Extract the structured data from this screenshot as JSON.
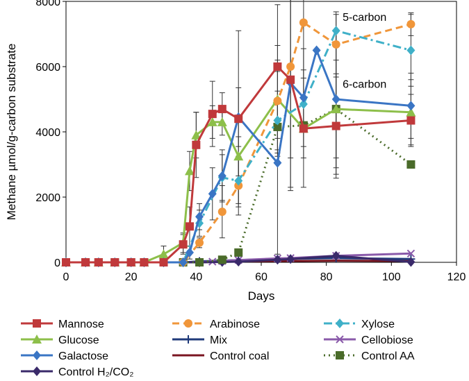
{
  "chart_data": {
    "type": "line",
    "title": "",
    "xlabel": "Days",
    "ylabel": "Methane µmol/g-carbon substrate",
    "xlim": [
      0,
      120
    ],
    "ylim": [
      0,
      8000
    ],
    "xticks": [
      "0",
      "20",
      "40",
      "60",
      "80",
      "100",
      "120"
    ],
    "yticks": [
      "0",
      "2000",
      "4000",
      "6000",
      "8000"
    ],
    "annotations": [
      {
        "text": "5-carbon",
        "x": 85,
        "y": 7400
      },
      {
        "text": "6-carbon",
        "x": 85,
        "y": 5350
      }
    ],
    "series": [
      {
        "name": "Mannose",
        "color": "#c0393b",
        "marker": "square",
        "dash": "solid",
        "x": [
          0,
          6,
          10,
          15,
          20,
          24,
          30,
          36,
          38,
          40,
          45,
          48,
          53,
          65,
          69,
          73,
          83,
          106
        ],
        "y": [
          0,
          0,
          0,
          0,
          0,
          0,
          0,
          550,
          1100,
          3600,
          4550,
          4700,
          4400,
          6000,
          5600,
          4100,
          4180,
          4350
        ],
        "err": [
          0,
          0,
          0,
          0,
          0,
          0,
          0,
          300,
          600,
          1000,
          1000,
          500,
          2700,
          1900,
          3300,
          1800,
          1600,
          800
        ]
      },
      {
        "name": "Arabinose",
        "color": "#f0963a",
        "marker": "circle",
        "dash": "dashed",
        "x": [
          0,
          6,
          10,
          15,
          20,
          24,
          30,
          36,
          41,
          48,
          53,
          65,
          69,
          73,
          83,
          106
        ],
        "y": [
          0,
          0,
          0,
          0,
          0,
          0,
          0,
          0,
          600,
          1550,
          2350,
          4950,
          6000,
          7350,
          6680,
          7300
        ],
        "err": [
          0,
          0,
          0,
          0,
          0,
          0,
          0,
          0,
          150,
          800,
          900,
          1700,
          2800,
          1700,
          1000,
          350
        ]
      },
      {
        "name": "Xylose",
        "color": "#3fb0c8",
        "marker": "diamond",
        "dash": "dashdot",
        "x": [
          0,
          6,
          10,
          15,
          20,
          24,
          30,
          36,
          41,
          48,
          53,
          65,
          73,
          83,
          106
        ],
        "y": [
          0,
          0,
          0,
          0,
          0,
          0,
          0,
          0,
          1200,
          2600,
          2500,
          4350,
          4850,
          7100,
          6500
        ],
        "err": [
          0,
          0,
          0,
          0,
          0,
          0,
          0,
          0,
          400,
          700,
          700,
          900,
          800,
          500,
          1100
        ]
      },
      {
        "name": "Glucose",
        "color": "#8dbf4a",
        "marker": "triangle",
        "dash": "solid",
        "x": [
          0,
          6,
          10,
          15,
          20,
          24,
          30,
          36,
          38,
          40,
          45,
          48,
          53,
          65,
          73,
          83,
          106
        ],
        "y": [
          0,
          0,
          0,
          0,
          0,
          0,
          250,
          600,
          2800,
          3900,
          4300,
          4300,
          3250,
          5000,
          4100,
          4700,
          4600
        ],
        "err": [
          0,
          0,
          0,
          0,
          0,
          0,
          250,
          300,
          600,
          700,
          500,
          400,
          600,
          1200,
          900,
          1500,
          1000
        ]
      },
      {
        "name": "Mix",
        "color": "#1f3a7a",
        "marker": "plus",
        "dash": "solid",
        "x": [
          0,
          6,
          10,
          15,
          20,
          24,
          30,
          36,
          41,
          48,
          53,
          65,
          69,
          83,
          106
        ],
        "y": [
          0,
          0,
          0,
          0,
          0,
          0,
          0,
          0,
          30,
          50,
          70,
          100,
          110,
          130,
          100
        ],
        "err": [
          0,
          0,
          0,
          0,
          0,
          0,
          0,
          0,
          0,
          0,
          0,
          0,
          0,
          0,
          0
        ]
      },
      {
        "name": "Cellobiose",
        "color": "#8a5aaa",
        "marker": "x",
        "dash": "solid",
        "x": [
          0,
          6,
          10,
          15,
          20,
          24,
          30,
          36,
          41,
          45,
          48,
          53,
          65,
          69,
          83,
          106
        ],
        "y": [
          0,
          0,
          0,
          0,
          0,
          0,
          0,
          0,
          10,
          20,
          40,
          70,
          120,
          130,
          200,
          270
        ],
        "err": [
          0,
          0,
          0,
          0,
          0,
          0,
          0,
          0,
          0,
          0,
          0,
          0,
          0,
          0,
          0,
          0
        ]
      },
      {
        "name": "Galactose",
        "color": "#3a75c4",
        "marker": "diamond",
        "dash": "solid",
        "x": [
          0,
          6,
          10,
          15,
          20,
          24,
          30,
          36,
          38,
          41,
          45,
          48,
          53,
          65,
          69,
          73,
          77,
          83,
          106
        ],
        "y": [
          0,
          0,
          0,
          0,
          0,
          0,
          0,
          0,
          300,
          1400,
          2100,
          2650,
          4450,
          3050,
          5500,
          5050,
          6500,
          5000,
          4800
        ],
        "err": [
          0,
          0,
          0,
          0,
          0,
          0,
          0,
          0,
          200,
          400,
          800,
          800,
          900,
          2800,
          3300,
          1500,
          0,
          2100,
          1000
        ]
      },
      {
        "name": "Control coal",
        "color": "#7a1520",
        "marker": "none",
        "dash": "solid",
        "x": [
          0,
          6,
          10,
          15,
          20,
          24,
          30,
          36,
          41,
          48,
          53,
          65,
          69,
          83,
          106
        ],
        "y": [
          0,
          0,
          0,
          0,
          0,
          0,
          0,
          0,
          0,
          20,
          30,
          40,
          40,
          50,
          40
        ],
        "err": [
          0,
          0,
          0,
          0,
          0,
          0,
          0,
          0,
          0,
          0,
          0,
          0,
          0,
          0,
          0
        ]
      },
      {
        "name": "Control H2/CO2",
        "color": "#3a2a6a",
        "marker": "diamond",
        "dash": "solid",
        "x": [
          0,
          6,
          10,
          15,
          20,
          24,
          30,
          36,
          41,
          48,
          53,
          65,
          69,
          83,
          106
        ],
        "y": [
          0,
          0,
          0,
          0,
          0,
          0,
          0,
          0,
          0,
          10,
          20,
          80,
          100,
          200,
          10
        ],
        "err": [
          0,
          0,
          0,
          0,
          0,
          0,
          0,
          0,
          0,
          0,
          0,
          0,
          0,
          0,
          0
        ]
      },
      {
        "name": "Control AA",
        "color": "#4a6b2a",
        "marker": "square",
        "dash": "dotted",
        "x": [
          0,
          6,
          10,
          15,
          20,
          24,
          30,
          36,
          41,
          48,
          53,
          65,
          73,
          83,
          106
        ],
        "y": [
          0,
          0,
          0,
          0,
          0,
          0,
          0,
          0,
          0,
          80,
          300,
          4150,
          4200,
          4700,
          3000
        ],
        "err": [
          0,
          0,
          0,
          0,
          0,
          0,
          0,
          0,
          0,
          0,
          0,
          800,
          0,
          2000,
          0
        ]
      }
    ]
  },
  "legend": {
    "rows": [
      [
        {
          "label": "Mannose",
          "series": 0
        },
        {
          "label": "Arabinose",
          "series": 1
        },
        {
          "label": "Xylose",
          "series": 2
        }
      ],
      [
        {
          "label": "Glucose",
          "series": 3
        },
        {
          "label": "Mix",
          "series": 4
        },
        {
          "label": "Cellobiose",
          "series": 5
        }
      ],
      [
        {
          "label": "Galactose",
          "series": 6
        },
        {
          "label": "Control coal",
          "series": 7
        },
        {
          "label": "Control AA",
          "series": 9
        }
      ],
      [
        {
          "label": "Control H₂/CO₂",
          "series": 8
        }
      ]
    ]
  }
}
